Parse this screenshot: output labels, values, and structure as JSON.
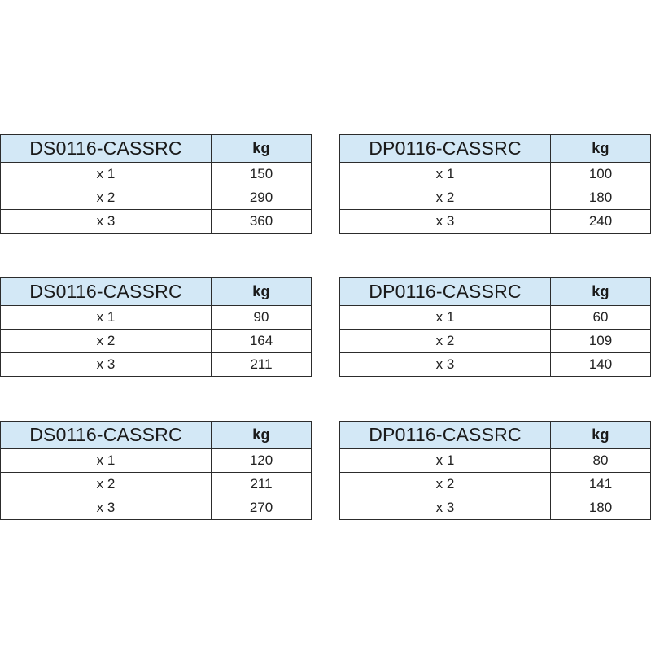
{
  "tables": [
    {
      "model": "DS0116-CASSRC",
      "unit": "kg",
      "rows": [
        {
          "qty": "x 1",
          "value": "150"
        },
        {
          "qty": "x 2",
          "value": "290"
        },
        {
          "qty": "x 3",
          "value": "360"
        }
      ]
    },
    {
      "model": "DP0116-CASSRC",
      "unit": "kg",
      "rows": [
        {
          "qty": "x 1",
          "value": "100"
        },
        {
          "qty": "x 2",
          "value": "180"
        },
        {
          "qty": "x 3",
          "value": "240"
        }
      ]
    },
    {
      "model": "DS0116-CASSRC",
      "unit": "kg",
      "rows": [
        {
          "qty": "x 1",
          "value": "90"
        },
        {
          "qty": "x 2",
          "value": "164"
        },
        {
          "qty": "x 3",
          "value": "211"
        }
      ]
    },
    {
      "model": "DP0116-CASSRC",
      "unit": "kg",
      "rows": [
        {
          "qty": "x 1",
          "value": "60"
        },
        {
          "qty": "x 2",
          "value": "109"
        },
        {
          "qty": "x 3",
          "value": "140"
        }
      ]
    },
    {
      "model": "DS0116-CASSRC",
      "unit": "kg",
      "rows": [
        {
          "qty": "x 1",
          "value": "120"
        },
        {
          "qty": "x 2",
          "value": "211"
        },
        {
          "qty": "x 3",
          "value": "270"
        }
      ]
    },
    {
      "model": "DP0116-CASSRC",
      "unit": "kg",
      "rows": [
        {
          "qty": "x 1",
          "value": "80"
        },
        {
          "qty": "x 2",
          "value": "141"
        },
        {
          "qty": "x 3",
          "value": "180"
        }
      ]
    }
  ],
  "colors": {
    "header_bg": "#d3e8f6",
    "border": "#2c2c2c"
  }
}
